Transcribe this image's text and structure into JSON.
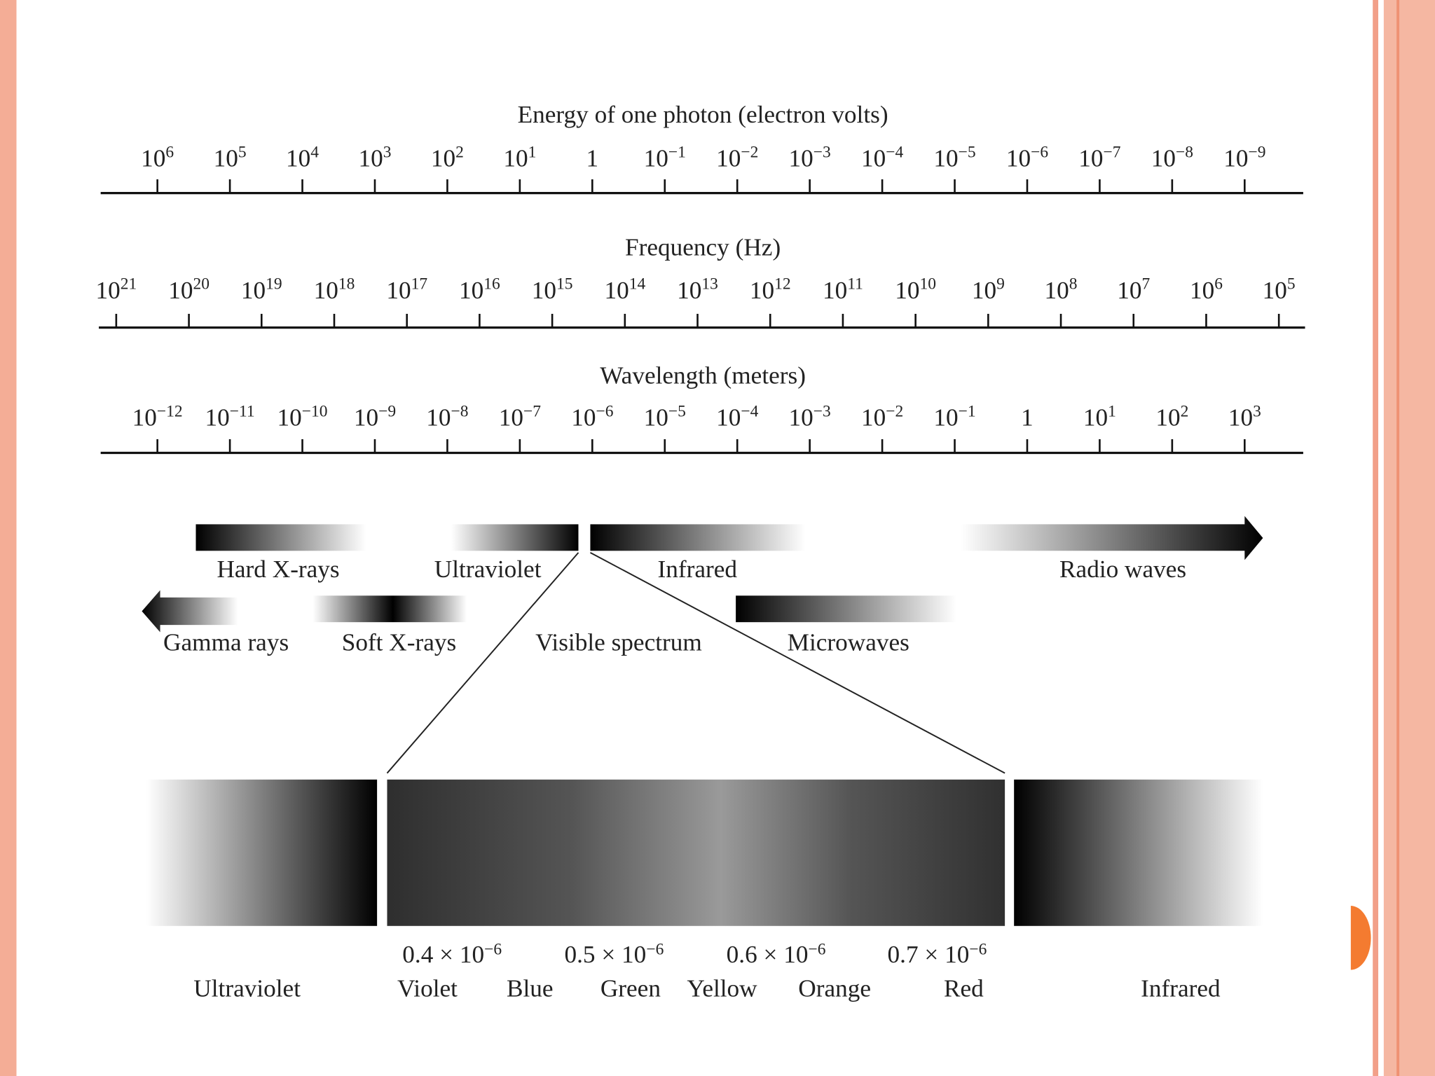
{
  "energy_axis": {
    "title": "Energy of one photon (electron volts)",
    "ticks": [
      {
        "base": "10",
        "exp": "6"
      },
      {
        "base": "10",
        "exp": "5"
      },
      {
        "base": "10",
        "exp": "4"
      },
      {
        "base": "10",
        "exp": "3"
      },
      {
        "base": "10",
        "exp": "2"
      },
      {
        "base": "10",
        "exp": "1"
      },
      {
        "base": "1"
      },
      {
        "base": "10",
        "exp": "−1"
      },
      {
        "base": "10",
        "exp": "−2"
      },
      {
        "base": "10",
        "exp": "−3"
      },
      {
        "base": "10",
        "exp": "−4"
      },
      {
        "base": "10",
        "exp": "−5"
      },
      {
        "base": "10",
        "exp": "−6"
      },
      {
        "base": "10",
        "exp": "−7"
      },
      {
        "base": "10",
        "exp": "−8"
      },
      {
        "base": "10",
        "exp": "−9"
      }
    ]
  },
  "frequency_axis": {
    "title": "Frequency (Hz)",
    "ticks": [
      {
        "base": "10",
        "exp": "21"
      },
      {
        "base": "10",
        "exp": "20"
      },
      {
        "base": "10",
        "exp": "19"
      },
      {
        "base": "10",
        "exp": "18"
      },
      {
        "base": "10",
        "exp": "17"
      },
      {
        "base": "10",
        "exp": "16"
      },
      {
        "base": "10",
        "exp": "15"
      },
      {
        "base": "10",
        "exp": "14"
      },
      {
        "base": "10",
        "exp": "13"
      },
      {
        "base": "10",
        "exp": "12"
      },
      {
        "base": "10",
        "exp": "11"
      },
      {
        "base": "10",
        "exp": "10"
      },
      {
        "base": "10",
        "exp": "9"
      },
      {
        "base": "10",
        "exp": "8"
      },
      {
        "base": "10",
        "exp": "7"
      },
      {
        "base": "10",
        "exp": "6"
      },
      {
        "base": "10",
        "exp": "5"
      }
    ]
  },
  "wavelength_axis": {
    "title": "Wavelength (meters)",
    "ticks": [
      {
        "base": "10",
        "exp": "−12"
      },
      {
        "base": "10",
        "exp": "−11"
      },
      {
        "base": "10",
        "exp": "−10"
      },
      {
        "base": "10",
        "exp": "−9"
      },
      {
        "base": "10",
        "exp": "−8"
      },
      {
        "base": "10",
        "exp": "−7"
      },
      {
        "base": "10",
        "exp": "−6"
      },
      {
        "base": "10",
        "exp": "−5"
      },
      {
        "base": "10",
        "exp": "−4"
      },
      {
        "base": "10",
        "exp": "−3"
      },
      {
        "base": "10",
        "exp": "−2"
      },
      {
        "base": "10",
        "exp": "−1"
      },
      {
        "base": "1"
      },
      {
        "base": "10",
        "exp": "1"
      },
      {
        "base": "10",
        "exp": "2"
      },
      {
        "base": "10",
        "exp": "3"
      }
    ]
  },
  "bands": {
    "hard_xrays": "Hard X-rays",
    "ultraviolet": "Ultraviolet",
    "infrared": "Infrared",
    "radio_waves": "Radio waves",
    "gamma_rays": "Gamma rays",
    "soft_xrays": "Soft X-rays",
    "visible_spectrum": "Visible spectrum",
    "microwaves": "Microwaves"
  },
  "visible_detail": {
    "wavelengths": [
      {
        "text": "0.4 × 10",
        "exp": "−6"
      },
      {
        "text": "0.5 × 10",
        "exp": "−6"
      },
      {
        "text": "0.6 × 10",
        "exp": "−6"
      },
      {
        "text": "0.7 × 10",
        "exp": "−6"
      }
    ],
    "left_label": "Ultraviolet",
    "colors": [
      "Violet",
      "Blue",
      "Green",
      "Yellow",
      "Orange",
      "Red"
    ],
    "right_label": "Infrared"
  }
}
